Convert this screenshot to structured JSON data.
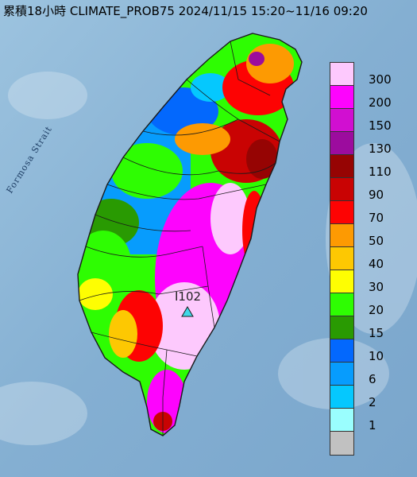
{
  "title": "累積18小時 CLIMATE_PROB75 2024/11/15 15:20~11/16 09:20",
  "strait_label": "Formosa Strait",
  "station": {
    "id": "I102",
    "marker": "triangle-marker"
  },
  "legend": [
    {
      "label": "300",
      "color": "#fdc9fd"
    },
    {
      "label": "200",
      "color": "#fd04fd"
    },
    {
      "label": "150",
      "color": "#d10fd1"
    },
    {
      "label": "130",
      "color": "#9c0c9e"
    },
    {
      "label": "110",
      "color": "#960403"
    },
    {
      "label": "90",
      "color": "#c90303"
    },
    {
      "label": "70",
      "color": "#fd0303"
    },
    {
      "label": "50",
      "color": "#fd9a02"
    },
    {
      "label": "40",
      "color": "#fdc802"
    },
    {
      "label": "30",
      "color": "#fefe02"
    },
    {
      "label": "20",
      "color": "#2efd02"
    },
    {
      "label": "15",
      "color": "#299a02"
    },
    {
      "label": "10",
      "color": "#0368fd"
    },
    {
      "label": "6",
      "color": "#079cfd"
    },
    {
      "label": "2",
      "color": "#05c8fe"
    },
    {
      "label": "1",
      "color": "#9afefe"
    },
    {
      "label": "",
      "color": "#c1c1c1"
    }
  ],
  "colors": {
    "sea": "#8fb8d8",
    "border": "#1a1a1a"
  }
}
